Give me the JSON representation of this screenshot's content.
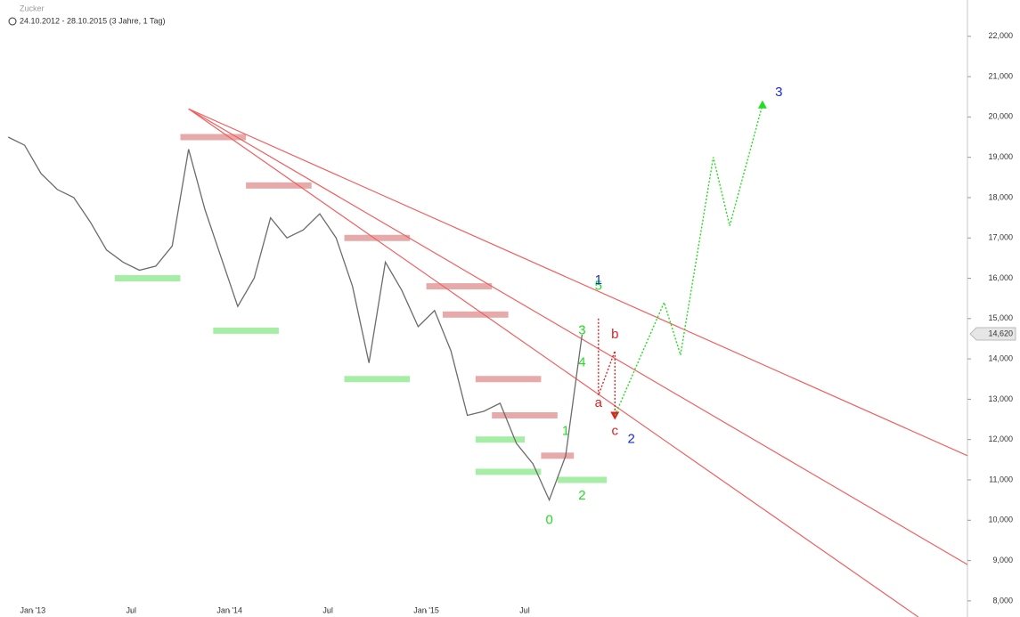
{
  "chart_data": {
    "type": "line",
    "title": "Zucker",
    "subtitle": "24.10.2012 - 28.10.2015 (3 Jahre, 1 Tag)",
    "x": [
      "2012-11",
      "2012-12",
      "2013-01",
      "2013-02",
      "2013-03",
      "2013-04",
      "2013-05",
      "2013-06",
      "2013-07",
      "2013-08",
      "2013-09",
      "2013-10",
      "2013-11",
      "2013-12",
      "2014-01",
      "2014-02",
      "2014-03",
      "2014-04",
      "2014-05",
      "2014-06",
      "2014-07",
      "2014-08",
      "2014-09",
      "2014-10",
      "2014-11",
      "2014-12",
      "2015-01",
      "2015-02",
      "2015-03",
      "2015-04",
      "2015-05",
      "2015-06",
      "2015-07",
      "2015-08",
      "2015-09",
      "2015-10"
    ],
    "series": [
      {
        "name": "Zucker",
        "color": "#6e6a6a",
        "values": [
          19.5,
          19.3,
          18.6,
          18.2,
          18.0,
          17.4,
          16.7,
          16.4,
          16.2,
          16.3,
          16.8,
          19.2,
          17.7,
          16.5,
          15.3,
          16.0,
          17.5,
          17.0,
          17.2,
          17.6,
          17.0,
          15.8,
          13.9,
          16.4,
          15.7,
          14.8,
          15.2,
          14.2,
          12.6,
          12.7,
          12.9,
          11.9,
          11.4,
          10.5,
          11.6,
          14.6
        ]
      }
    ],
    "xlim": [
      "2012-11",
      "2017-10"
    ],
    "xticks": [
      {
        "value": "2013-01",
        "label": "Jan '13"
      },
      {
        "value": "2013-07",
        "label": "Jul"
      },
      {
        "value": "2014-01",
        "label": "Jan '14"
      },
      {
        "value": "2014-07",
        "label": "Jul"
      },
      {
        "value": "2015-01",
        "label": "Jan '15"
      },
      {
        "value": "2015-07",
        "label": "Jul"
      }
    ],
    "ylim": [
      7.6,
      22.9
    ],
    "yticks": [
      {
        "value": 8,
        "label": "8,000"
      },
      {
        "value": 9,
        "label": "9,000"
      },
      {
        "value": 10,
        "label": "10,000"
      },
      {
        "value": 11,
        "label": "11,000"
      },
      {
        "value": 12,
        "label": "12,000"
      },
      {
        "value": 13,
        "label": "13,000"
      },
      {
        "value": 14,
        "label": "14,000"
      },
      {
        "value": 15,
        "label": "15,000"
      },
      {
        "value": 16,
        "label": "16,000"
      },
      {
        "value": 17,
        "label": "17,000"
      },
      {
        "value": 18,
        "label": "18,000"
      },
      {
        "value": 19,
        "label": "19,000"
      },
      {
        "value": 20,
        "label": "20,000"
      },
      {
        "value": 21,
        "label": "21,000"
      },
      {
        "value": 22,
        "label": "22,000"
      }
    ],
    "last_price": {
      "value": 14.62,
      "label": "14,620"
    },
    "zones": [
      {
        "x0": "2013-06",
        "x1": "2013-09",
        "y": 16.0,
        "color": "#a6eea6"
      },
      {
        "x0": "2013-12",
        "x1": "2014-03",
        "y": 14.7,
        "color": "#a6eea6"
      },
      {
        "x0": "2014-08",
        "x1": "2014-11",
        "y": 13.5,
        "color": "#a6eea6"
      },
      {
        "x0": "2015-04",
        "x1": "2015-06",
        "y": 12.0,
        "color": "#a6eea6"
      },
      {
        "x0": "2015-04",
        "x1": "2015-07",
        "y": 11.2,
        "color": "#a6eea6"
      },
      {
        "x0": "2015-09",
        "x1": "2015-11",
        "y": 11.0,
        "color": "#a6eea6"
      },
      {
        "x0": "2013-10",
        "x1": "2014-01",
        "y": 19.5,
        "color": "#e6aaaa"
      },
      {
        "x0": "2014-02",
        "x1": "2014-05",
        "y": 18.3,
        "color": "#e6aaaa"
      },
      {
        "x0": "2014-08",
        "x1": "2014-11",
        "y": 17.0,
        "color": "#e6aaaa"
      },
      {
        "x0": "2015-01",
        "x1": "2015-04",
        "y": 15.8,
        "color": "#e6aaaa"
      },
      {
        "x0": "2015-02",
        "x1": "2015-05",
        "y": 15.1,
        "color": "#e6aaaa"
      },
      {
        "x0": "2015-04",
        "x1": "2015-07",
        "y": 13.5,
        "color": "#e6aaaa"
      },
      {
        "x0": "2015-05",
        "x1": "2015-08",
        "y": 12.6,
        "color": "#e6aaaa"
      },
      {
        "x0": "2015-08",
        "x1": "2015-09",
        "y": 11.6,
        "color": "#e6aaaa"
      }
    ],
    "trend_lines": [
      {
        "x0": "2013-10",
        "y0": 20.2,
        "x1": "2017-10",
        "y1": 11.6,
        "color": "#f06060"
      },
      {
        "x0": "2013-10",
        "y0": 20.2,
        "x1": "2017-10",
        "y1": 8.9,
        "color": "#f06060"
      },
      {
        "x0": "2013-10",
        "y0": 20.2,
        "x1": "2017-07",
        "y1": 7.6,
        "color": "#f06060"
      }
    ],
    "projections": [
      {
        "color": "#e02020",
        "x": [
          "2015-11",
          "2015-11",
          "2015-12",
          "2015-12"
        ],
        "values": [
          15.0,
          13.1,
          14.2,
          12.6
        ]
      },
      {
        "color": "#22dd22",
        "x": [
          "2015-12",
          "2016-03",
          "2016-04",
          "2016-06",
          "2016-07",
          "2016-09"
        ],
        "values": [
          12.6,
          15.4,
          14.1,
          19.0,
          17.3,
          20.3
        ]
      }
    ],
    "annotations": [
      {
        "text": "0",
        "x": "2015-08",
        "y": 10.0,
        "color": "#22dd22"
      },
      {
        "text": "1",
        "x": "2015-09",
        "y": 12.2,
        "color": "#22dd22"
      },
      {
        "text": "2",
        "x": "2015-10",
        "y": 10.6,
        "color": "#22dd22"
      },
      {
        "text": "3",
        "x": "2015-10",
        "y": 14.7,
        "color": "#22dd22"
      },
      {
        "text": "4",
        "x": "2015-10",
        "y": 13.9,
        "color": "#22dd22"
      },
      {
        "text": "5",
        "x": "2015-11",
        "y": 15.8,
        "color": "#22dd22"
      },
      {
        "text": "1",
        "x": "2015-11",
        "y": 15.95,
        "color": "#1a2ad8"
      },
      {
        "text": "a",
        "x": "2015-11",
        "y": 12.9,
        "color": "#e02020"
      },
      {
        "text": "b",
        "x": "2015-12",
        "y": 14.6,
        "color": "#e02020"
      },
      {
        "text": "c",
        "x": "2015-12",
        "y": 12.2,
        "color": "#e02020"
      },
      {
        "text": "2",
        "x": "2016-01",
        "y": 12.0,
        "color": "#1a2ad8"
      },
      {
        "text": "3",
        "x": "2016-10",
        "y": 20.6,
        "color": "#1a2ad8"
      }
    ]
  }
}
